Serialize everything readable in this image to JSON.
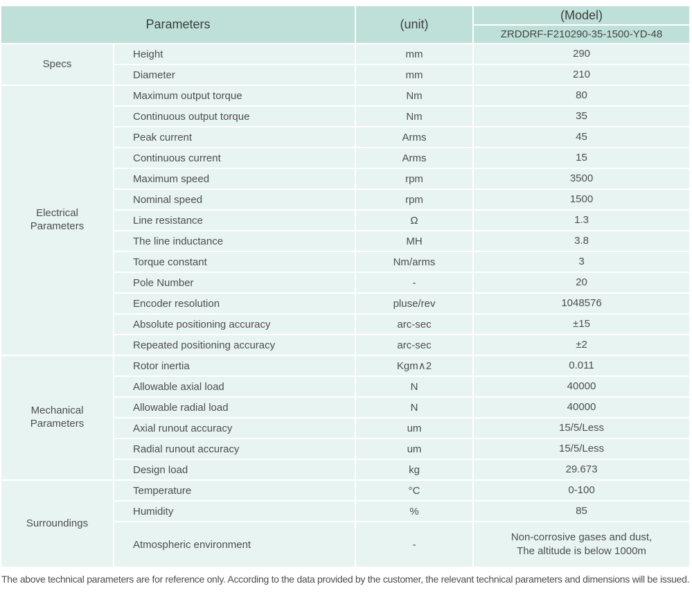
{
  "table": {
    "header": {
      "parameters_label": "Parameters",
      "unit_label": "(unit)",
      "model_label": "(Model)",
      "model_number": "ZRDDRF-F210290-35-1500-YD-48"
    },
    "sections": [
      {
        "label": "Specs",
        "rows": [
          {
            "param": "Height",
            "unit": "mm",
            "value": "290"
          },
          {
            "param": "Diameter",
            "unit": "mm",
            "value": "210"
          }
        ]
      },
      {
        "label": "Electrical\nParameters",
        "rows": [
          {
            "param": "Maximum output torque",
            "unit": "Nm",
            "value": "80"
          },
          {
            "param": "Continuous output torque",
            "unit": "Nm",
            "value": "35"
          },
          {
            "param": "Peak current",
            "unit": "Arms",
            "value": "45"
          },
          {
            "param": "Continuous current",
            "unit": "Arms",
            "value": "15"
          },
          {
            "param": "Maximum speed",
            "unit": "rpm",
            "value": "3500"
          },
          {
            "param": "Nominal speed",
            "unit": "rpm",
            "value": "1500"
          },
          {
            "param": "Line resistance",
            "unit": "Ω",
            "value": "1.3"
          },
          {
            "param": "The line inductance",
            "unit": "MH",
            "value": "3.8"
          },
          {
            "param": "Torque constant",
            "unit": "Nm/arms",
            "value": "3"
          },
          {
            "param": "Pole Number",
            "unit": "-",
            "value": "20"
          },
          {
            "param": "Encoder resolution",
            "unit": "pluse/rev",
            "value": "1048576"
          },
          {
            "param": "Absolute positioning accuracy",
            "unit": "arc-sec",
            "value": "±15"
          },
          {
            "param": "Repeated positioning accuracy",
            "unit": "arc-sec",
            "value": "±2"
          }
        ]
      },
      {
        "label": "Mechanical\nParameters",
        "rows": [
          {
            "param": "Rotor inertia",
            "unit": "Kgm∧2",
            "value": "0.011"
          },
          {
            "param": "Allowable axial load",
            "unit": "N",
            "value": "40000"
          },
          {
            "param": "Allowable radial load",
            "unit": "N",
            "value": "40000"
          },
          {
            "param": "Axial runout accuracy",
            "unit": "um",
            "value": "15/5/Less"
          },
          {
            "param": "Radial runout accuracy",
            "unit": "um",
            "value": "15/5/Less"
          },
          {
            "param": "Design load",
            "unit": "kg",
            "value": "29.673"
          }
        ]
      },
      {
        "label": "Surroundings",
        "rows": [
          {
            "param": "Temperature",
            "unit": "°C",
            "value": "0-100"
          },
          {
            "param": "Humidity",
            "unit": "%",
            "value": "85"
          },
          {
            "param": "Atmospheric environment",
            "unit": "-",
            "value": "Non-corrosive gases and dust,\nThe altitude is below 1000m"
          }
        ]
      }
    ]
  },
  "footer": {
    "note": "The above technical parameters are for reference only. According to the data provided by the customer, the relevant technical parameters and dimensions will be issued."
  },
  "colors": {
    "header_bg": "#bee0d8",
    "cell_bg": "#e8f4f1",
    "gap": "#ffffff",
    "text": "#4d4d4d"
  }
}
